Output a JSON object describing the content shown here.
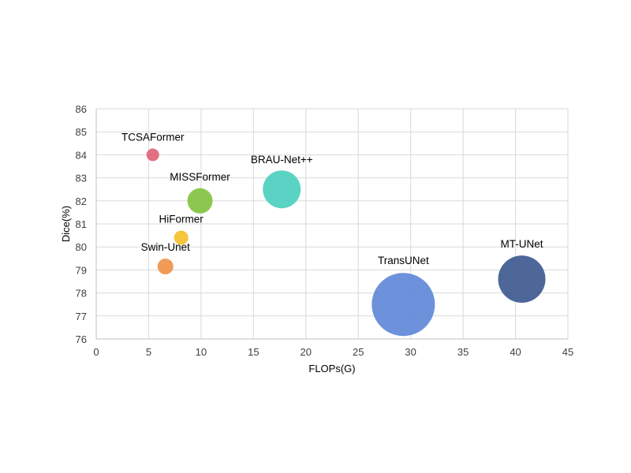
{
  "chart_data": {
    "type": "scatter",
    "title": "",
    "xlabel": "FLOPs(G)",
    "ylabel": "Dice(%)",
    "xlim": [
      0,
      45
    ],
    "ylim": [
      76,
      86
    ],
    "xticks": [
      0,
      5,
      10,
      15,
      20,
      25,
      30,
      35,
      40,
      45
    ],
    "yticks": [
      76,
      77,
      78,
      79,
      80,
      81,
      82,
      83,
      84,
      85,
      86
    ],
    "grid": true,
    "legend": "none",
    "points": [
      {
        "label": "TCSAFormer",
        "x": 5.4,
        "y": 84.0,
        "size": 8,
        "color": "#e06377"
      },
      {
        "label": "MISSFormer",
        "x": 9.9,
        "y": 82.0,
        "size": 16,
        "color": "#82c341"
      },
      {
        "label": "HiFormer",
        "x": 8.1,
        "y": 80.4,
        "size": 9,
        "color": "#f5c02c"
      },
      {
        "label": "Swin-Unet",
        "x": 6.6,
        "y": 79.15,
        "size": 10,
        "color": "#f0924a"
      },
      {
        "label": "BRAU-Net++",
        "x": 17.7,
        "y": 82.5,
        "size": 24,
        "color": "#4ccfc0"
      },
      {
        "label": "TransUNet",
        "x": 29.3,
        "y": 77.5,
        "size": 40,
        "color": "#6188d8"
      },
      {
        "label": "MT-UNet",
        "x": 40.6,
        "y": 78.6,
        "size": 30,
        "color": "#3e5a90"
      }
    ]
  }
}
